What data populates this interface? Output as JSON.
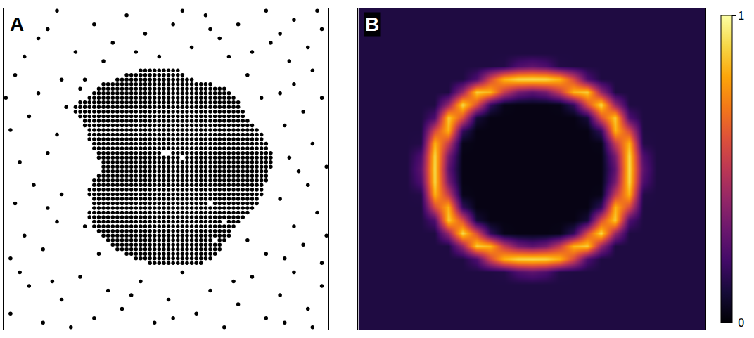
{
  "chart_data": [
    {
      "type": "scatter",
      "title": "A",
      "color": "#000000",
      "marker": "circle",
      "xlim": [
        -0.5,
        69.5
      ],
      "ylim": [
        -0.5,
        69.5
      ],
      "tick_labels": false,
      "grid": false,
      "cluster_rows": [
        {
          "y": 56,
          "runs": [
            [
              29,
              37
            ]
          ]
        },
        {
          "y": 55,
          "runs": [
            [
              26,
              38
            ]
          ]
        },
        {
          "y": 54,
          "runs": [
            [
              24,
              40
            ]
          ]
        },
        {
          "y": 53,
          "runs": [
            [
              21,
              44
            ]
          ]
        },
        {
          "y": 52,
          "runs": [
            [
              20,
              47
            ]
          ]
        },
        {
          "y": 51,
          "runs": [
            [
              19,
              48
            ]
          ]
        },
        {
          "y": 50,
          "runs": [
            [
              18,
              49
            ]
          ]
        },
        {
          "y": 49,
          "runs": [
            [
              16,
              50
            ]
          ]
        },
        {
          "y": 48,
          "runs": [
            [
              15,
              50
            ]
          ]
        },
        {
          "y": 47,
          "runs": [
            [
              15,
              51
            ]
          ]
        },
        {
          "y": 46,
          "runs": [
            [
              16,
              51
            ]
          ]
        },
        {
          "y": 45,
          "runs": [
            [
              17,
              52
            ]
          ]
        },
        {
          "y": 44,
          "runs": [
            [
              17,
              53
            ]
          ]
        },
        {
          "y": 43,
          "runs": [
            [
              18,
              54
            ]
          ]
        },
        {
          "y": 42,
          "runs": [
            [
              18,
              55
            ]
          ]
        },
        {
          "y": 41,
          "runs": [
            [
              18,
              55
            ]
          ]
        },
        {
          "y": 40,
          "runs": [
            [
              19,
              56
            ]
          ]
        },
        {
          "y": 39,
          "runs": [
            [
              19,
              56
            ]
          ]
        },
        {
          "y": 38,
          "runs": [
            [
              20,
              33
            ],
            [
              36,
              57
            ]
          ]
        },
        {
          "y": 37,
          "runs": [
            [
              20,
              37
            ],
            [
              39,
              57
            ]
          ]
        },
        {
          "y": 36,
          "runs": [
            [
              21,
              57
            ]
          ]
        },
        {
          "y": 35,
          "runs": [
            [
              21,
              57
            ]
          ]
        },
        {
          "y": 34,
          "runs": [
            [
              21,
              56
            ]
          ]
        },
        {
          "y": 33,
          "runs": [
            [
              20,
              56
            ]
          ]
        },
        {
          "y": 32,
          "runs": [
            [
              19,
              56
            ]
          ]
        },
        {
          "y": 31,
          "runs": [
            [
              19,
              55
            ]
          ]
        },
        {
          "y": 30,
          "runs": [
            [
              18,
              55
            ]
          ]
        },
        {
          "y": 29,
          "runs": [
            [
              18,
              55
            ]
          ]
        },
        {
          "y": 28,
          "runs": [
            [
              19,
              54
            ]
          ]
        },
        {
          "y": 27,
          "runs": [
            [
              19,
              43
            ],
            [
              45,
              54
            ]
          ]
        },
        {
          "y": 26,
          "runs": [
            [
              19,
              53
            ]
          ]
        },
        {
          "y": 25,
          "runs": [
            [
              18,
              52
            ]
          ]
        },
        {
          "y": 24,
          "runs": [
            [
              18,
              51
            ]
          ]
        },
        {
          "y": 23,
          "runs": [
            [
              19,
              46
            ],
            [
              48,
              50
            ]
          ]
        },
        {
          "y": 22,
          "runs": [
            [
              19,
              49
            ]
          ]
        },
        {
          "y": 21,
          "runs": [
            [
              20,
              48
            ]
          ]
        },
        {
          "y": 20,
          "runs": [
            [
              21,
              48
            ]
          ]
        },
        {
          "y": 19,
          "runs": [
            [
              22,
              44
            ],
            [
              46,
              47
            ]
          ]
        },
        {
          "y": 18,
          "runs": [
            [
              23,
              46
            ]
          ]
        },
        {
          "y": 17,
          "runs": [
            [
              24,
              46
            ]
          ]
        },
        {
          "y": 16,
          "runs": [
            [
              26,
              45
            ]
          ]
        },
        {
          "y": 15,
          "runs": [
            [
              28,
              44
            ]
          ]
        },
        {
          "y": 14,
          "runs": [
            [
              31,
              42
            ]
          ]
        }
      ],
      "x": [
        7,
        11,
        15,
        19,
        23,
        26,
        30,
        33,
        36,
        40,
        43,
        46,
        50,
        53,
        56,
        59,
        62,
        65,
        68,
        4,
        21,
        38,
        48,
        61,
        67,
        9,
        28,
        44,
        57,
        1,
        5,
        8,
        12,
        16,
        19,
        22,
        25,
        29,
        32,
        35,
        38,
        41,
        44,
        47,
        50,
        53,
        56,
        59,
        62,
        65,
        68,
        3,
        14,
        27,
        36,
        49,
        60,
        66,
        10,
        1,
        4,
        8,
        11,
        2,
        6,
        12,
        3,
        9,
        1,
        5,
        11,
        7,
        2,
        12,
        9,
        13,
        0,
        60,
        64,
        68,
        62,
        67,
        59,
        65,
        69,
        61,
        66,
        60,
        64,
        68,
        62,
        66,
        59,
        69,
        63,
        17,
        16,
        56,
        52,
        52,
        55,
        20,
        17
      ],
      "y": [
        63,
        69,
        60,
        66,
        62,
        68,
        64,
        59,
        66,
        61,
        68,
        63,
        66,
        60,
        69,
        64,
        67,
        61,
        65,
        59,
        58,
        69,
        59,
        58,
        69,
        65,
        60,
        65,
        62,
        3,
        9,
        1,
        6,
        11,
        2,
        8,
        4,
        10,
        1,
        6,
        12,
        3,
        8,
        0,
        5,
        11,
        2,
        7,
        12,
        4,
        9,
        12,
        0,
        7,
        2,
        10,
        1,
        0,
        10,
        15,
        20,
        17,
        23,
        27,
        31,
        29,
        36,
        38,
        43,
        46,
        42,
        51,
        55,
        54,
        26,
        48,
        50,
        15,
        18,
        14,
        22,
        25,
        28,
        31,
        35,
        37,
        40,
        44,
        47,
        50,
        53,
        56,
        51,
        20,
        34,
        54,
        52,
        16,
        19,
        55,
        50,
        16,
        22
      ]
    },
    {
      "type": "heatmap",
      "title": "B",
      "color": "inferno",
      "xlim": [
        -0.5,
        24.5
      ],
      "ylim": [
        -0.5,
        24.5
      ],
      "tick_labels": false,
      "grid": false,
      "colorbar": {
        "range": [
          0,
          1
        ],
        "ticks": [
          0,
          1
        ]
      },
      "cells": [
        [
          0.12,
          0.12,
          0.12,
          0.12,
          0.12,
          0.12,
          0.12,
          0.12,
          0.12,
          0.12,
          0.12,
          0.12,
          0.12,
          0.12,
          0.12,
          0.12,
          0.12,
          0.12,
          0.12,
          0.12,
          0.12,
          0.12,
          0.12,
          0.12,
          0.12
        ],
        [
          0.12,
          0.12,
          0.12,
          0.12,
          0.12,
          0.12,
          0.12,
          0.12,
          0.12,
          0.12,
          0.12,
          0.12,
          0.12,
          0.12,
          0.12,
          0.12,
          0.12,
          0.12,
          0.12,
          0.12,
          0.12,
          0.12,
          0.12,
          0.12,
          0.12
        ],
        [
          0.12,
          0.12,
          0.12,
          0.12,
          0.12,
          0.12,
          0.12,
          0.12,
          0.12,
          0.12,
          0.12,
          0.12,
          0.12,
          0.12,
          0.12,
          0.12,
          0.12,
          0.12,
          0.12,
          0.12,
          0.12,
          0.12,
          0.12,
          0.12,
          0.12
        ],
        [
          0.12,
          0.12,
          0.12,
          0.12,
          0.12,
          0.12,
          0.12,
          0.12,
          0.12,
          0.12,
          0.12,
          0.12,
          0.12,
          0.12,
          0.12,
          0.12,
          0.12,
          0.12,
          0.12,
          0.12,
          0.12,
          0.12,
          0.12,
          0.12,
          0.12
        ],
        [
          0.12,
          0.12,
          0.12,
          0.12,
          0.12,
          0.12,
          0.12,
          0.12,
          0.12,
          0.12,
          0.13,
          0.23,
          0.27,
          0.23,
          0.13,
          0.12,
          0.12,
          0.12,
          0.12,
          0.12,
          0.12,
          0.12,
          0.12,
          0.12,
          0.12
        ],
        [
          0.12,
          0.12,
          0.12,
          0.12,
          0.12,
          0.12,
          0.12,
          0.12,
          0.23,
          0.57,
          0.83,
          0.91,
          0.92,
          0.91,
          0.83,
          0.57,
          0.23,
          0.12,
          0.12,
          0.12,
          0.12,
          0.12,
          0.12,
          0.12,
          0.12
        ],
        [
          0.12,
          0.12,
          0.12,
          0.12,
          0.12,
          0.12,
          0.12,
          0.41,
          0.88,
          0.83,
          0.52,
          0.33,
          0.27,
          0.33,
          0.52,
          0.83,
          0.88,
          0.41,
          0.12,
          0.12,
          0.12,
          0.12,
          0.12,
          0.12,
          0.12
        ],
        [
          0.12,
          0.12,
          0.12,
          0.12,
          0.12,
          0.12,
          0.41,
          0.91,
          0.59,
          0.17,
          0.04,
          0.03,
          0.03,
          0.03,
          0.04,
          0.17,
          0.59,
          0.91,
          0.41,
          0.12,
          0.12,
          0.12,
          0.12,
          0.12,
          0.12
        ],
        [
          0.12,
          0.12,
          0.12,
          0.12,
          0.12,
          0.23,
          0.88,
          0.59,
          0.1,
          0.03,
          0.03,
          0.03,
          0.03,
          0.03,
          0.03,
          0.03,
          0.1,
          0.59,
          0.88,
          0.23,
          0.12,
          0.12,
          0.12,
          0.12,
          0.12
        ],
        [
          0.12,
          0.12,
          0.12,
          0.12,
          0.12,
          0.57,
          0.83,
          0.17,
          0.03,
          0.03,
          0.03,
          0.03,
          0.03,
          0.03,
          0.03,
          0.03,
          0.03,
          0.17,
          0.83,
          0.57,
          0.12,
          0.12,
          0.12,
          0.12,
          0.12
        ],
        [
          0.12,
          0.12,
          0.12,
          0.12,
          0.13,
          0.83,
          0.52,
          0.04,
          0.03,
          0.03,
          0.03,
          0.03,
          0.03,
          0.03,
          0.03,
          0.03,
          0.03,
          0.04,
          0.52,
          0.83,
          0.13,
          0.12,
          0.12,
          0.12,
          0.12
        ],
        [
          0.12,
          0.12,
          0.12,
          0.12,
          0.23,
          0.91,
          0.33,
          0.03,
          0.03,
          0.03,
          0.03,
          0.03,
          0.03,
          0.03,
          0.03,
          0.03,
          0.03,
          0.03,
          0.33,
          0.91,
          0.23,
          0.12,
          0.12,
          0.12,
          0.12
        ],
        [
          0.12,
          0.12,
          0.12,
          0.12,
          0.27,
          0.92,
          0.27,
          0.03,
          0.03,
          0.03,
          0.03,
          0.03,
          0.03,
          0.03,
          0.03,
          0.03,
          0.03,
          0.03,
          0.27,
          0.92,
          0.27,
          0.12,
          0.12,
          0.12,
          0.12
        ],
        [
          0.12,
          0.12,
          0.12,
          0.12,
          0.23,
          0.91,
          0.33,
          0.03,
          0.03,
          0.03,
          0.03,
          0.03,
          0.03,
          0.03,
          0.03,
          0.03,
          0.03,
          0.03,
          0.33,
          0.91,
          0.23,
          0.12,
          0.12,
          0.12,
          0.12
        ],
        [
          0.12,
          0.12,
          0.12,
          0.12,
          0.13,
          0.83,
          0.52,
          0.04,
          0.03,
          0.03,
          0.03,
          0.03,
          0.03,
          0.03,
          0.03,
          0.03,
          0.03,
          0.04,
          0.52,
          0.83,
          0.13,
          0.12,
          0.12,
          0.12,
          0.12
        ],
        [
          0.12,
          0.12,
          0.12,
          0.12,
          0.12,
          0.57,
          0.83,
          0.17,
          0.03,
          0.03,
          0.03,
          0.03,
          0.03,
          0.03,
          0.03,
          0.03,
          0.03,
          0.17,
          0.83,
          0.57,
          0.12,
          0.12,
          0.12,
          0.12,
          0.12
        ],
        [
          0.12,
          0.12,
          0.12,
          0.12,
          0.12,
          0.23,
          0.88,
          0.59,
          0.1,
          0.03,
          0.03,
          0.03,
          0.03,
          0.03,
          0.03,
          0.03,
          0.1,
          0.59,
          0.88,
          0.23,
          0.12,
          0.12,
          0.12,
          0.12,
          0.12
        ],
        [
          0.12,
          0.12,
          0.12,
          0.12,
          0.12,
          0.12,
          0.41,
          0.91,
          0.59,
          0.17,
          0.04,
          0.03,
          0.03,
          0.03,
          0.04,
          0.17,
          0.59,
          0.91,
          0.41,
          0.12,
          0.12,
          0.12,
          0.12,
          0.12,
          0.12
        ],
        [
          0.12,
          0.12,
          0.12,
          0.12,
          0.12,
          0.12,
          0.12,
          0.41,
          0.88,
          0.83,
          0.52,
          0.33,
          0.27,
          0.33,
          0.52,
          0.83,
          0.88,
          0.41,
          0.12,
          0.12,
          0.12,
          0.12,
          0.12,
          0.12,
          0.12
        ],
        [
          0.12,
          0.12,
          0.12,
          0.12,
          0.12,
          0.12,
          0.12,
          0.12,
          0.23,
          0.57,
          0.83,
          0.91,
          0.92,
          0.91,
          0.83,
          0.57,
          0.23,
          0.12,
          0.12,
          0.12,
          0.12,
          0.12,
          0.12,
          0.12,
          0.12
        ],
        [
          0.12,
          0.12,
          0.12,
          0.12,
          0.12,
          0.12,
          0.12,
          0.12,
          0.12,
          0.12,
          0.13,
          0.23,
          0.27,
          0.23,
          0.13,
          0.12,
          0.12,
          0.12,
          0.12,
          0.12,
          0.12,
          0.12,
          0.12,
          0.12,
          0.12
        ],
        [
          0.12,
          0.12,
          0.12,
          0.12,
          0.12,
          0.12,
          0.12,
          0.12,
          0.12,
          0.12,
          0.12,
          0.12,
          0.12,
          0.12,
          0.12,
          0.12,
          0.12,
          0.12,
          0.12,
          0.12,
          0.12,
          0.12,
          0.12,
          0.12,
          0.12
        ],
        [
          0.12,
          0.12,
          0.12,
          0.12,
          0.12,
          0.12,
          0.12,
          0.12,
          0.12,
          0.12,
          0.12,
          0.12,
          0.12,
          0.12,
          0.12,
          0.12,
          0.12,
          0.12,
          0.12,
          0.12,
          0.12,
          0.12,
          0.12,
          0.12,
          0.12
        ],
        [
          0.12,
          0.12,
          0.12,
          0.12,
          0.12,
          0.12,
          0.12,
          0.12,
          0.12,
          0.12,
          0.12,
          0.12,
          0.12,
          0.12,
          0.12,
          0.12,
          0.12,
          0.12,
          0.12,
          0.12,
          0.12,
          0.12,
          0.12,
          0.12,
          0.12
        ],
        [
          0.12,
          0.12,
          0.12,
          0.12,
          0.12,
          0.12,
          0.12,
          0.12,
          0.12,
          0.12,
          0.12,
          0.12,
          0.12,
          0.12,
          0.12,
          0.12,
          0.12,
          0.12,
          0.12,
          0.12,
          0.12,
          0.12,
          0.12,
          0.12,
          0.12
        ]
      ]
    }
  ]
}
